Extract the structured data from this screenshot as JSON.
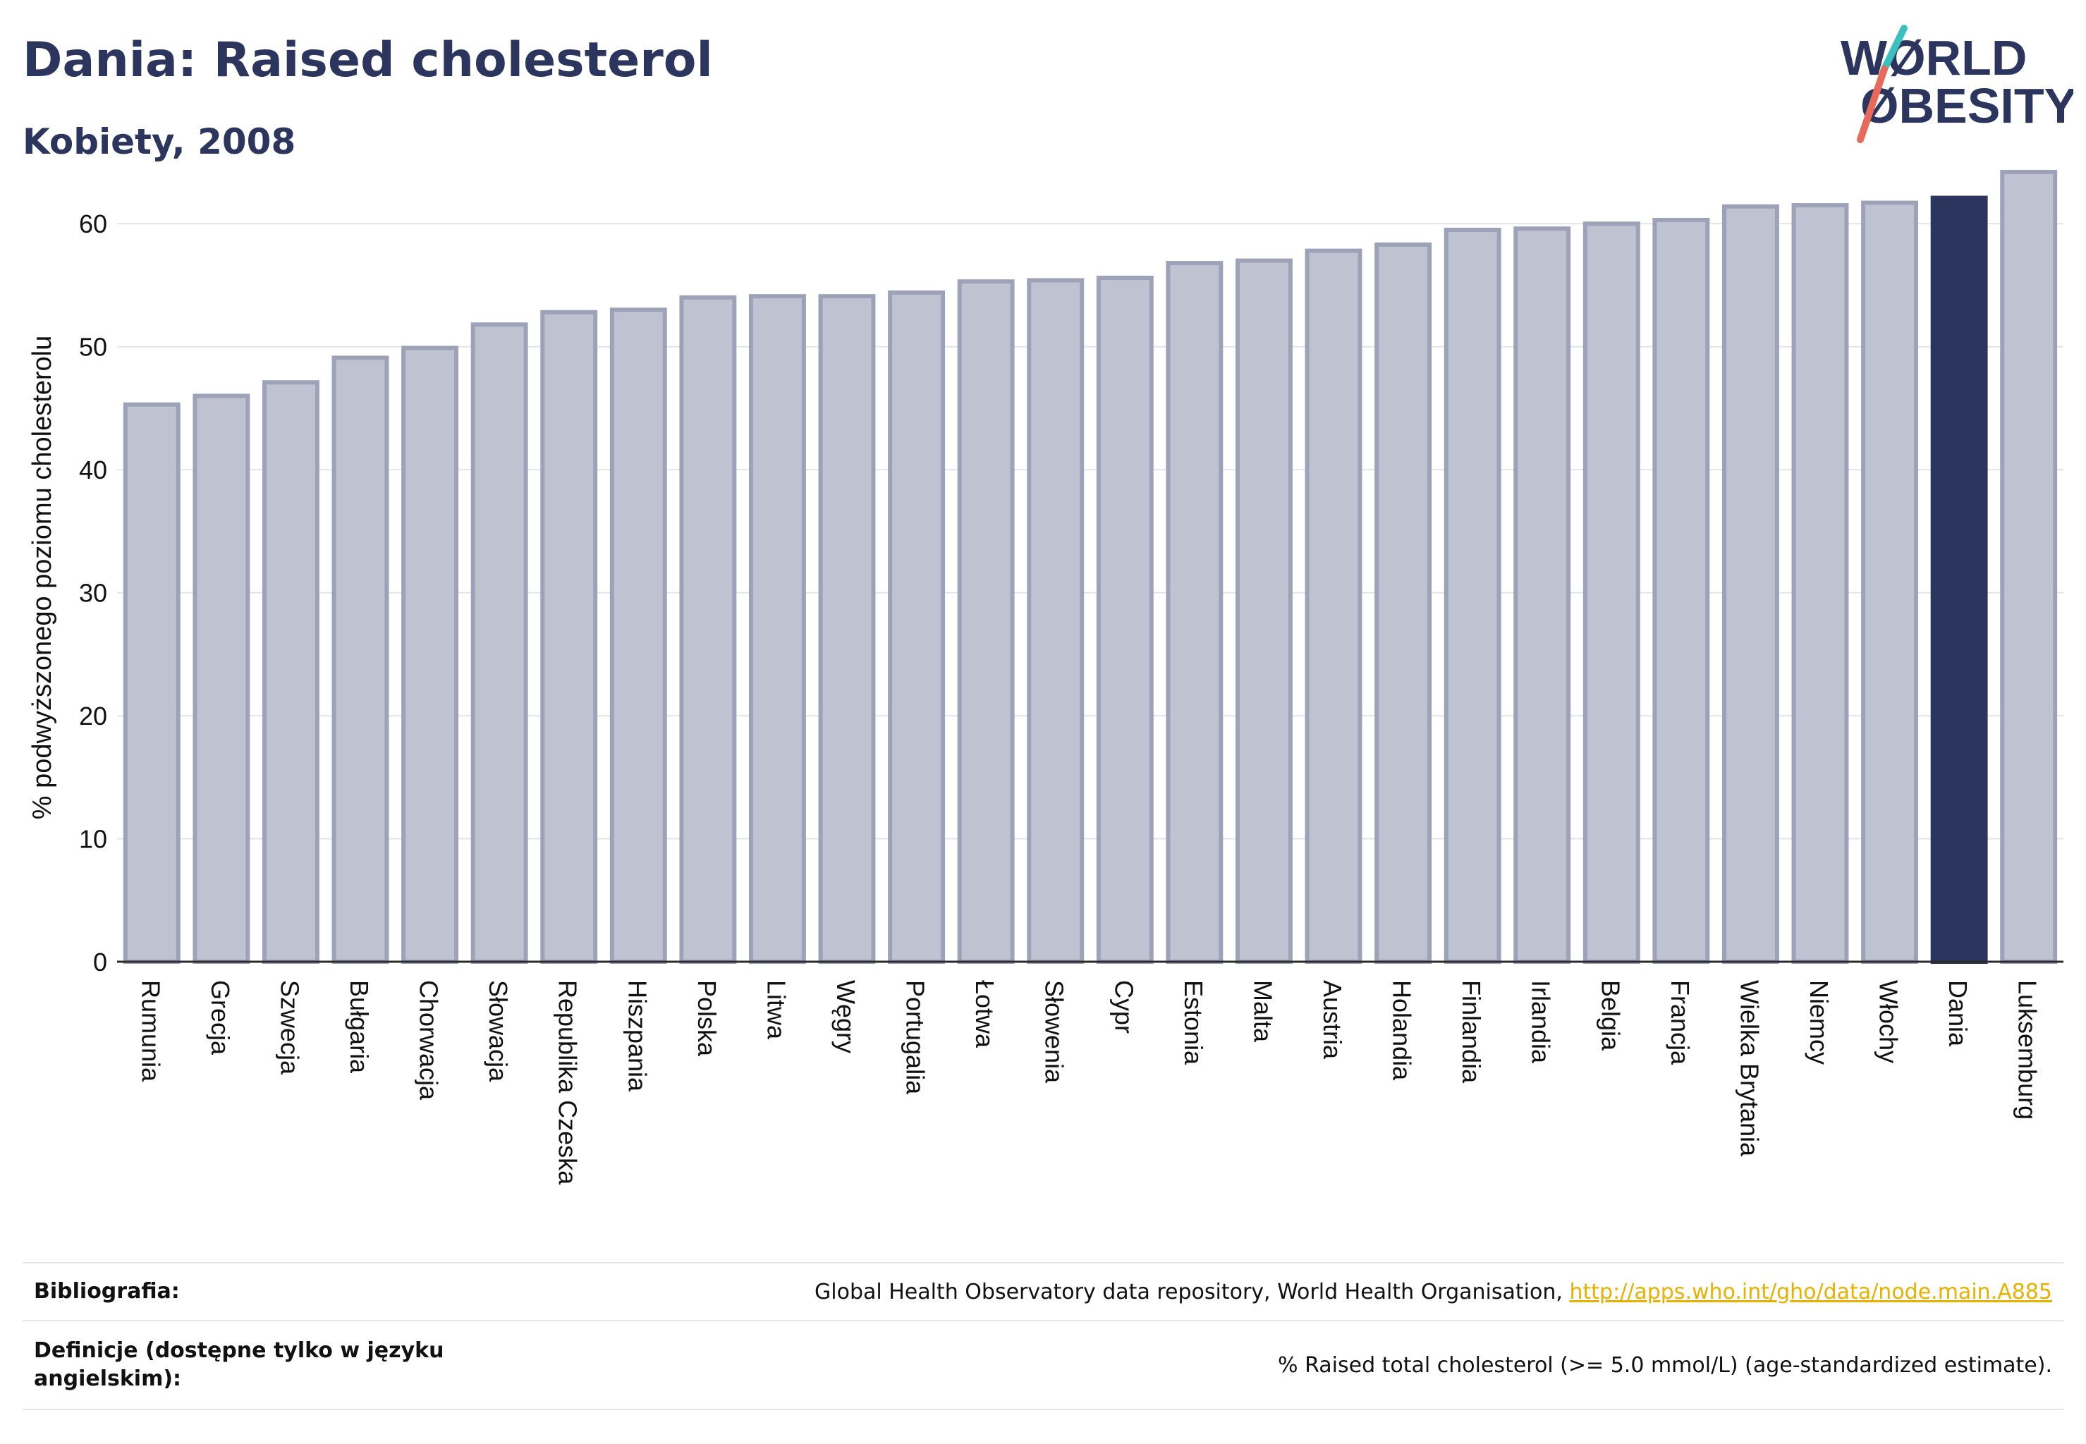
{
  "header": {
    "title": "Dania: Raised cholesterol",
    "subtitle": "Kobiety, 2008"
  },
  "logo": {
    "line1": "WØRLD",
    "line2": "ØBESITY",
    "icon": "world-obesity-logo"
  },
  "colors": {
    "highlight": "#2b355e",
    "bar_fill": "#bfc2d0",
    "bar_stroke": "#9da2b8",
    "accent_teal": "#3cbfbf",
    "accent_coral": "#e86a5a",
    "link": "#e8b100"
  },
  "chart_data": {
    "type": "bar",
    "ylabel": "% podwyższonego poziomu cholesterolu",
    "xlabel": "",
    "ylim": [
      0,
      65
    ],
    "yticks": [
      0,
      10,
      20,
      30,
      40,
      50,
      60
    ],
    "grid": true,
    "highlight_category": "Dania",
    "categories": [
      "Rumunia",
      "Grecja",
      "Szwecja",
      "Bułgaria",
      "Chorwacja",
      "Słowacja",
      "Republika Czeska",
      "Hiszpania",
      "Polska",
      "Litwa",
      "Węgry",
      "Portugalia",
      "Łotwa",
      "Słowenia",
      "Cypr",
      "Estonia",
      "Malta",
      "Austria",
      "Holandia",
      "Finlandia",
      "Irlandia",
      "Belgia",
      "Francja",
      "Wielka Brytania",
      "Niemcy",
      "Włochy",
      "Dania",
      "Luksemburg"
    ],
    "values": [
      45.3,
      46.0,
      47.1,
      49.1,
      49.9,
      51.8,
      52.8,
      53.0,
      54.0,
      54.1,
      54.1,
      54.4,
      55.3,
      55.4,
      55.6,
      56.8,
      57.0,
      57.8,
      58.3,
      59.5,
      59.6,
      60.0,
      60.3,
      61.4,
      61.5,
      61.7,
      62.1,
      64.2
    ]
  },
  "footer": {
    "rows": [
      {
        "label": "Bibliografia:",
        "text": "Global Health Observatory data repository, World Health Organisation, ",
        "link": "http://apps.who.int/gho/data/node.main.A885"
      },
      {
        "label": "Definicje (dostępne tylko w języku angielskim):",
        "text": "% Raised total cholesterol (>= 5.0 mmol/L) (age-standardized estimate).",
        "link": ""
      }
    ]
  }
}
